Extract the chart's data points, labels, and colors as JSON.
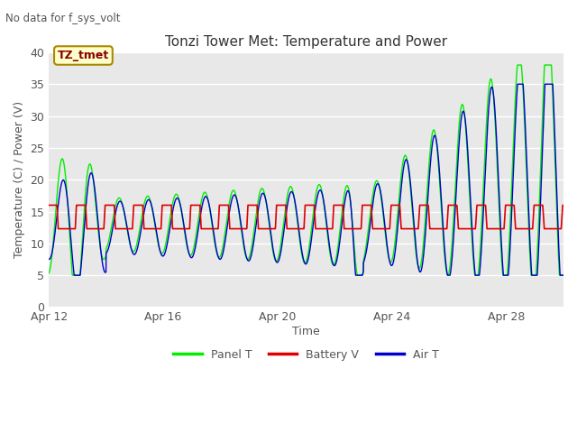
{
  "title": "Tonzi Tower Met: Temperature and Power",
  "xlabel": "Time",
  "ylabel": "Temperature (C) / Power (V)",
  "top_left_note": "No data for f_sys_volt",
  "annotation_label": "TZ_tmet",
  "ylim": [
    0,
    40
  ],
  "yticks": [
    0,
    5,
    10,
    15,
    20,
    25,
    30,
    35,
    40
  ],
  "xtick_labels": [
    "Apr 12",
    "Apr 16",
    "Apr 20",
    "Apr 24",
    "Apr 28"
  ],
  "xtick_positions": [
    0,
    4,
    8,
    12,
    16
  ],
  "plot_bg_color": "#e8e8e8",
  "grid_color": "#ffffff",
  "panel_t_color": "#00ee00",
  "battery_v_color": "#dd0000",
  "air_t_color": "#0000cc",
  "note_color": "#555555",
  "annotation_face": "#ffffcc",
  "annotation_edge": "#aa8800",
  "annotation_text_color": "#880000",
  "title_color": "#333333",
  "tick_label_color": "#555555"
}
